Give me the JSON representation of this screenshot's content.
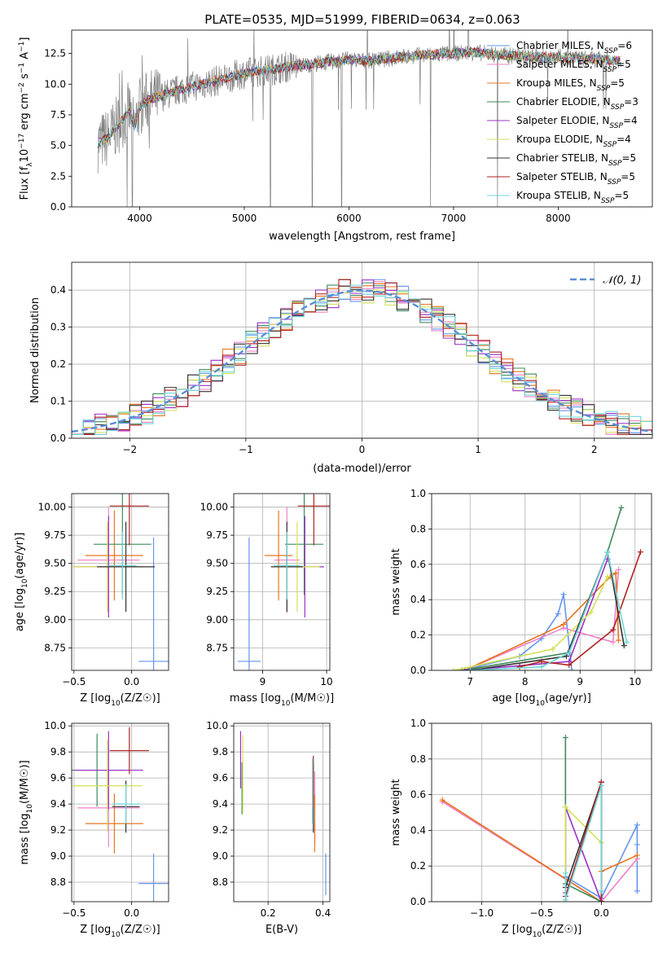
{
  "title": "PLATE=0535, MJD=51999, FIBERID=0634, z=0.063",
  "chart_data": [
    {
      "id": "spectrum",
      "type": "line",
      "xlabel": "wavelength [Angstrom, rest frame]",
      "ylabel": "Flux [f_λ 10^-17 erg cm^-2 s^-1 A^-1]",
      "xlim": [
        3350,
        8900
      ],
      "ylim": [
        0,
        14.4
      ],
      "xticks": [
        4000,
        5000,
        6000,
        7000,
        8000
      ],
      "yticks": [
        0.0,
        2.5,
        5.0,
        7.5,
        10.0,
        12.5
      ],
      "data_color": "#808080",
      "continuum_x": [
        3600,
        3700,
        3800,
        3900,
        3950,
        4000,
        4100,
        4200,
        4400,
        4600,
        4800,
        5000,
        5200,
        5400,
        5600,
        5800,
        6000,
        6200,
        6400,
        6600,
        6800,
        7000,
        7200,
        7400,
        7600,
        7800,
        8000,
        8200,
        8400,
        8600
      ],
      "continuum_y": [
        5.2,
        5.6,
        6.8,
        7.8,
        6.5,
        8.2,
        8.8,
        9.0,
        9.6,
        10.0,
        10.4,
        10.9,
        11.1,
        11.4,
        11.6,
        11.8,
        12.0,
        11.9,
        12.1,
        12.3,
        12.4,
        12.5,
        12.6,
        12.4,
        12.3,
        12.2,
        12.2,
        12.1,
        12.0,
        11.9
      ],
      "series": [
        {
          "name": "Chabrier MILES, N_SSP=6",
          "color": "#6495ed"
        },
        {
          "name": "Salpeter MILES, N_SSP=5",
          "color": "#ee82c8"
        },
        {
          "name": "Kroupa MILES, N_SSP=5",
          "color": "#e8741e"
        },
        {
          "name": "Chabrier ELODIE, N_SSP=3",
          "color": "#3d8b5a"
        },
        {
          "name": "Salpeter ELODIE, N_SSP=4",
          "color": "#9b30c8"
        },
        {
          "name": "Kroupa ELODIE, N_SSP=4",
          "color": "#d4e157"
        },
        {
          "name": "Chabrier STELIB, N_SSP=5",
          "color": "#333333"
        },
        {
          "name": "Salpeter STELIB, N_SSP=5",
          "color": "#b22222"
        },
        {
          "name": "Kroupa STELIB, N_SSP=5",
          "color": "#6fd6d9"
        }
      ]
    },
    {
      "id": "histogram",
      "type": "bar",
      "xlabel": "(data-model)/error",
      "ylabel": "Normed distribution",
      "xlim": [
        -2.5,
        2.5
      ],
      "ylim": [
        0,
        0.475
      ],
      "xticks": [
        -2,
        -1,
        0,
        1,
        2
      ],
      "yticks": [
        0.0,
        0.1,
        0.2,
        0.3,
        0.4
      ],
      "legend": "$\\mathcal{N}(0,1)$",
      "legend_display": "𝒩(0, 1)",
      "legend_position": "upper right",
      "bin_width": 0.1,
      "bin_start": -2.5,
      "gaussian_color": "#5b8fd8"
    },
    {
      "id": "age_vs_Z",
      "type": "scatter",
      "xlabel": "Z [log10(Z/Z☉)]",
      "ylabel": "age  [log10(age/yr)]",
      "xlim": [
        -0.52,
        0.32
      ],
      "ylim": [
        8.55,
        10.12
      ],
      "xticks": [
        -0.5,
        0.0
      ],
      "yticks": [
        8.75,
        9.0,
        9.25,
        9.5,
        9.75,
        10.0
      ],
      "points": [
        {
          "color": "#6495ed",
          "x": 0.19,
          "y": 8.63,
          "xerr": 0.13,
          "yerr": 1.1
        },
        {
          "color": "#ee82c8",
          "x": -0.2,
          "y": 9.53,
          "xerr": 0.27,
          "yerr": 0.47
        },
        {
          "color": "#e8741e",
          "x": -0.15,
          "y": 9.57,
          "xerr": 0.25,
          "yerr": 0.4
        },
        {
          "color": "#3d8b5a",
          "x": -0.08,
          "y": 9.67,
          "xerr": 0.25,
          "yerr": 0.45
        },
        {
          "color": "#9b30c8",
          "x": -0.2,
          "y": 9.47,
          "xerr": 0.3,
          "yerr": 0.45
        },
        {
          "color": "#d4e157",
          "x": -0.21,
          "y": 9.47,
          "xerr": 0.3,
          "yerr": 0.4
        },
        {
          "color": "#333333",
          "x": -0.05,
          "y": 9.47,
          "xerr": 0.25,
          "yerr": 0.4
        },
        {
          "color": "#b22222",
          "x": -0.02,
          "y": 10.01,
          "xerr": 0.17,
          "yerr": 0.35
        },
        {
          "color": "#6fd6d9",
          "x": -0.08,
          "y": 9.48,
          "xerr": 0.12,
          "yerr": 0.3
        }
      ]
    },
    {
      "id": "age_vs_mass",
      "type": "scatter",
      "xlabel": "mass [log10(M/M☉)]",
      "ylabel": "",
      "xlim": [
        8.55,
        10.05
      ],
      "ylim": [
        8.55,
        10.12
      ],
      "xticks": [
        9,
        10
      ],
      "yticks": [
        8.75,
        9.0,
        9.25,
        9.5,
        9.75,
        10.0
      ],
      "points": [
        {
          "color": "#6495ed",
          "x": 8.79,
          "y": 8.63,
          "xerr": 0.18,
          "yerr": 1.1
        },
        {
          "color": "#ee82c8",
          "x": 9.38,
          "y": 9.53,
          "xerr": 0.2,
          "yerr": 0.47
        },
        {
          "color": "#e8741e",
          "x": 9.25,
          "y": 9.57,
          "xerr": 0.22,
          "yerr": 0.4
        },
        {
          "color": "#3d8b5a",
          "x": 9.65,
          "y": 9.67,
          "xerr": 0.3,
          "yerr": 0.45
        },
        {
          "color": "#9b30c8",
          "x": 9.66,
          "y": 9.47,
          "xerr": 0.3,
          "yerr": 0.45
        },
        {
          "color": "#d4e157",
          "x": 9.54,
          "y": 9.47,
          "xerr": 0.35,
          "yerr": 0.4
        },
        {
          "color": "#333333",
          "x": 9.38,
          "y": 9.47,
          "xerr": 0.25,
          "yerr": 0.4
        },
        {
          "color": "#b22222",
          "x": 9.8,
          "y": 10.01,
          "xerr": 0.25,
          "yerr": 0.35
        },
        {
          "color": "#6fd6d9",
          "x": 9.38,
          "y": 9.48,
          "xerr": 0.2,
          "yerr": 0.3
        }
      ]
    },
    {
      "id": "weight_vs_age",
      "type": "line",
      "xlabel": "age  [log10(age/yr)]",
      "ylabel": "mass weight",
      "xlim": [
        6.3,
        10.3
      ],
      "ylim": [
        0,
        1.0
      ],
      "xticks": [
        7,
        8,
        9,
        10
      ],
      "yticks": [
        0.0,
        0.2,
        0.4,
        0.6,
        0.8,
        1.0
      ],
      "series": [
        {
          "color": "#6495ed",
          "x": [
            6.85,
            7.9,
            8.3,
            8.6,
            8.7,
            8.85
          ],
          "y": [
            0.0,
            0.08,
            0.18,
            0.32,
            0.43,
            0.0
          ]
        },
        {
          "color": "#ee82c8",
          "x": [
            6.9,
            8.7,
            9.6,
            9.7
          ],
          "y": [
            0.0,
            0.24,
            0.16,
            0.57
          ]
        },
        {
          "color": "#e8741e",
          "x": [
            6.9,
            8.7,
            9.55,
            9.65,
            9.7
          ],
          "y": [
            0.0,
            0.26,
            0.53,
            0.55,
            0.17
          ]
        },
        {
          "color": "#3d8b5a",
          "x": [
            6.85,
            8.8,
            9.5,
            9.75
          ],
          "y": [
            0.0,
            0.1,
            0.67,
            0.92
          ]
        },
        {
          "color": "#9b30c8",
          "x": [
            6.9,
            8.8,
            9.5
          ],
          "y": [
            0.0,
            0.05,
            0.63
          ]
        },
        {
          "color": "#d4e157",
          "x": [
            6.7,
            8.5,
            9.2,
            9.5
          ],
          "y": [
            0.0,
            0.12,
            0.33,
            0.53
          ]
        },
        {
          "color": "#333333",
          "x": [
            7.0,
            8.75,
            9.5,
            9.8
          ],
          "y": [
            0.0,
            0.08,
            0.67,
            0.14
          ]
        },
        {
          "color": "#b22222",
          "x": [
            7.9,
            8.3,
            8.8,
            9.6,
            10.1
          ],
          "y": [
            0.02,
            0.05,
            0.03,
            0.23,
            0.67
          ]
        },
        {
          "color": "#6fd6d9",
          "x": [
            7.0,
            8.3,
            8.8,
            9.5,
            9.85
          ],
          "y": [
            0.0,
            0.02,
            0.1,
            0.67,
            0.16
          ]
        }
      ]
    },
    {
      "id": "mass_vs_Z",
      "type": "scatter",
      "xlabel": "Z [log10(Z/Z☉)]",
      "ylabel": "mass [log10(M/M☉)]",
      "xlim": [
        -0.52,
        0.32
      ],
      "ylim": [
        8.65,
        10.02
      ],
      "xticks": [
        -0.5,
        0.0
      ],
      "yticks": [
        8.8,
        9.0,
        9.2,
        9.4,
        9.6,
        9.8,
        10.0
      ],
      "points": [
        {
          "color": "#6495ed",
          "x": 0.19,
          "y": 8.79,
          "xerr": 0.13,
          "yerr": 0.23
        },
        {
          "color": "#ee82c8",
          "x": -0.2,
          "y": 9.37,
          "xerr": 0.27,
          "yerr": 0.3
        },
        {
          "color": "#e8741e",
          "x": -0.15,
          "y": 9.25,
          "xerr": 0.25,
          "yerr": 0.23
        },
        {
          "color": "#3d8b5a",
          "x": -0.3,
          "y": 9.66,
          "xerr": 0.25,
          "yerr": 0.28
        },
        {
          "color": "#9b30c8",
          "x": -0.2,
          "y": 9.66,
          "xerr": 0.3,
          "yerr": 0.3
        },
        {
          "color": "#d4e157",
          "x": -0.21,
          "y": 9.54,
          "xerr": 0.3,
          "yerr": 0.35
        },
        {
          "color": "#333333",
          "x": -0.05,
          "y": 9.38,
          "xerr": 0.12,
          "yerr": 0.2
        },
        {
          "color": "#b22222",
          "x": -0.02,
          "y": 9.81,
          "xerr": 0.17,
          "yerr": 0.18
        },
        {
          "color": "#6fd6d9",
          "x": -0.05,
          "y": 9.4,
          "xerr": 0.12,
          "yerr": 0.15
        }
      ]
    },
    {
      "id": "mass_vs_EBV",
      "type": "scatter",
      "xlabel": "E(B-V)",
      "ylabel": "",
      "xlim": [
        0.075,
        0.425
      ],
      "ylim": [
        8.65,
        10.02
      ],
      "xticks": [
        0.2,
        0.4
      ],
      "yticks": [
        8.8,
        9.0,
        9.2,
        9.4,
        9.6,
        9.8,
        10.0
      ],
      "points": [
        {
          "color": "#6495ed",
          "x": 0.41,
          "y": 8.86,
          "yerr": 0.16
        },
        {
          "color": "#ee82c8",
          "x": 0.37,
          "y": 9.37,
          "yerr": 0.28
        },
        {
          "color": "#e8741e",
          "x": 0.37,
          "y": 9.25,
          "yerr": 0.22
        },
        {
          "color": "#3d8b5a",
          "x": 0.105,
          "y": 9.52,
          "yerr": 0.2
        },
        {
          "color": "#9b30c8",
          "x": 0.1,
          "y": 9.74,
          "yerr": 0.22
        },
        {
          "color": "#d4e157",
          "x": 0.108,
          "y": 9.63,
          "yerr": 0.3
        },
        {
          "color": "#333333",
          "x": 0.365,
          "y": 9.45,
          "yerr": 0.27
        },
        {
          "color": "#b22222",
          "x": 0.365,
          "y": 9.57,
          "yerr": 0.2
        },
        {
          "color": "#6fd6d9",
          "x": 0.362,
          "y": 9.5,
          "yerr": 0.25
        }
      ]
    },
    {
      "id": "weight_vs_Z",
      "type": "line",
      "xlabel": "Z [log10(Z/Z☉)]",
      "ylabel": "mass weight",
      "xlim": [
        -1.42,
        0.42
      ],
      "ylim": [
        0,
        1.0
      ],
      "xticks": [
        -1.0,
        -0.5,
        0.0
      ],
      "yticks": [
        0.0,
        0.2,
        0.4,
        0.6,
        0.8,
        1.0
      ],
      "series": [
        {
          "color": "#6495ed",
          "x": [
            -0.3,
            0.0,
            0.3,
            0.3,
            0.3
          ],
          "y": [
            0.14,
            0.02,
            0.43,
            0.32,
            0.06
          ]
        },
        {
          "color": "#ee82c8",
          "x": [
            -1.33,
            0.0,
            0.3
          ],
          "y": [
            0.56,
            0.0,
            0.24
          ]
        },
        {
          "color": "#e8741e",
          "x": [
            -1.33,
            0.0,
            0.0,
            0.3
          ],
          "y": [
            0.57,
            0.0,
            0.17,
            0.26
          ]
        },
        {
          "color": "#3d8b5a",
          "x": [
            -0.3,
            -0.3,
            0.0
          ],
          "y": [
            0.92,
            0.1,
            0.0
          ]
        },
        {
          "color": "#9b30c8",
          "x": [
            -0.3,
            -0.3,
            0.0
          ],
          "y": [
            0.05,
            0.53,
            0.0
          ]
        },
        {
          "color": "#d4e157",
          "x": [
            -0.3,
            -0.3,
            0.0,
            0.0
          ],
          "y": [
            0.0,
            0.53,
            0.33,
            0.0
          ]
        },
        {
          "color": "#333333",
          "x": [
            -0.3,
            0.0,
            0.0
          ],
          "y": [
            0.08,
            0.67,
            0.0
          ]
        },
        {
          "color": "#b22222",
          "x": [
            -0.3,
            0.0,
            0.0
          ],
          "y": [
            0.03,
            0.67,
            0.0
          ]
        },
        {
          "color": "#6fd6d9",
          "x": [
            -0.3,
            -0.3,
            0.0,
            0.0
          ],
          "y": [
            0.16,
            0.01,
            0.65,
            0.06
          ]
        }
      ]
    }
  ]
}
